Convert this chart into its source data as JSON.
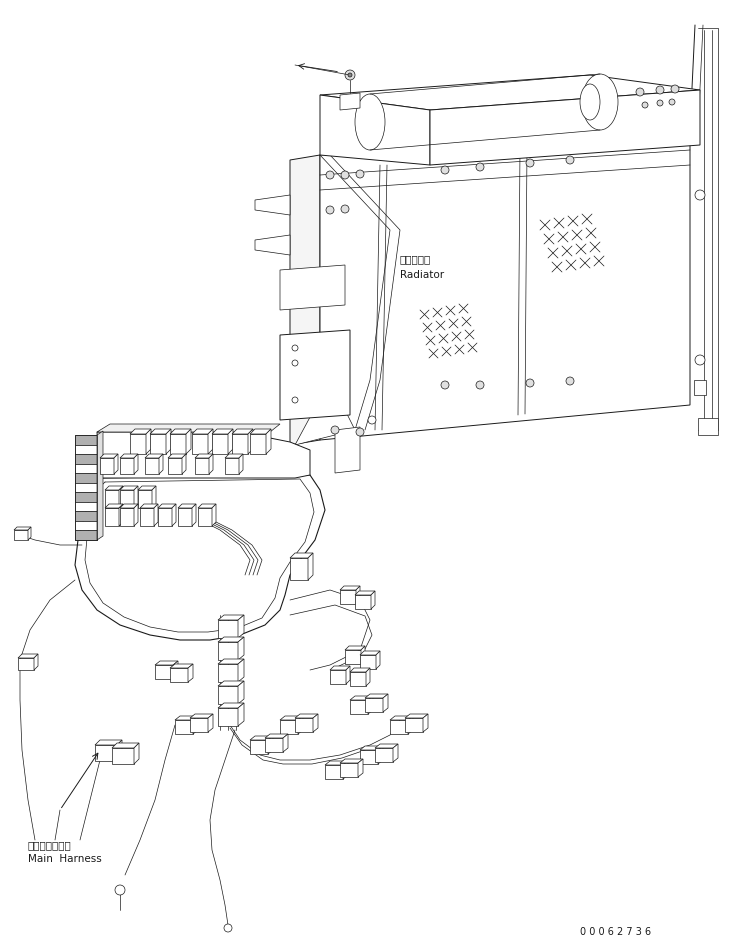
{
  "background_color": "#ffffff",
  "line_color": "#1a1a1a",
  "fig_width": 7.41,
  "fig_height": 9.48,
  "dpi": 100,
  "label_radiator_jp": "ラジエータ",
  "label_radiator_en": "Radiator",
  "label_harness_jp": "メインハーネス",
  "label_harness_en": "Main  Harness",
  "part_number": "0 0 0 6 2 7 3 6",
  "font_size_label": 7.5,
  "font_size_part": 7.0
}
